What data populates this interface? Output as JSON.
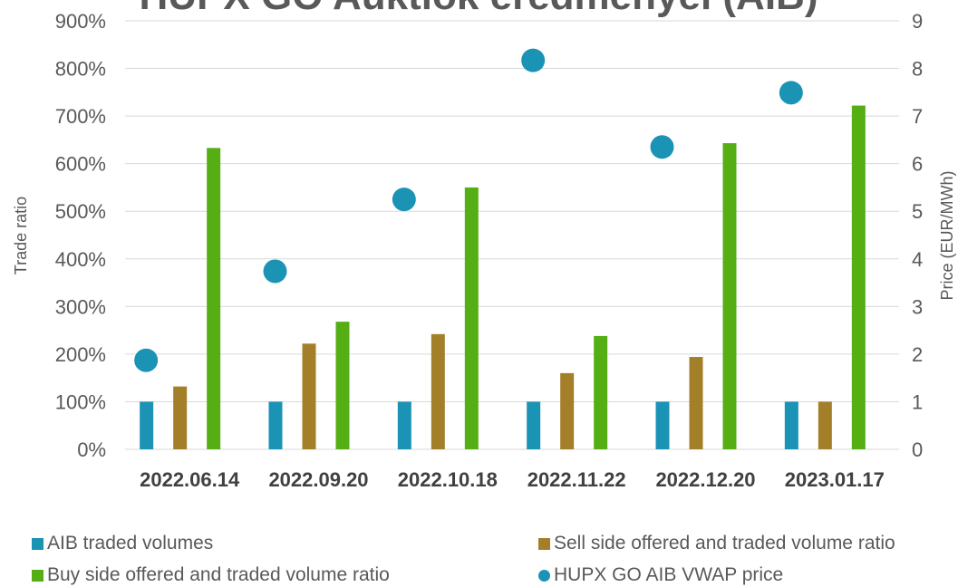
{
  "chart_data": {
    "type": "bar",
    "title": "HUPX GO Auktiók eredményei (AIB)",
    "categories": [
      "2022.06.14",
      "2022.09.20",
      "2022.10.18",
      "2022.11.22",
      "2022.12.20",
      "2023.01.17"
    ],
    "ylabel": "Trade ratio",
    "y2label": "Price (EUR/MWh)",
    "ylim": [
      0,
      900
    ],
    "y2lim": [
      0,
      9
    ],
    "yticks": [
      "0%",
      "100%",
      "200%",
      "300%",
      "400%",
      "500%",
      "600%",
      "700%",
      "800%",
      "900%"
    ],
    "y2ticks": [
      "0",
      "1",
      "2",
      "3",
      "4",
      "5",
      "6",
      "7",
      "8",
      "9"
    ],
    "grid": true,
    "legend_position": "bottom",
    "series": [
      {
        "name": "AIB traded volumes",
        "type": "bar",
        "axis": "left",
        "color": "#1b93b5",
        "values": [
          100,
          100,
          100,
          100,
          100,
          100
        ]
      },
      {
        "name": "Sell side offered and traded volume ratio",
        "type": "bar",
        "axis": "left",
        "color": "#a47f2a",
        "values": [
          132,
          222,
          242,
          160,
          194,
          100
        ]
      },
      {
        "name": "Buy side offered and traded volume ratio",
        "type": "bar",
        "axis": "left",
        "color": "#55ae14",
        "values": [
          633,
          268,
          550,
          238,
          643,
          722
        ]
      },
      {
        "name": "HUPX GO AIB VWAP price",
        "type": "scatter",
        "axis": "right",
        "color": "#1b93b5",
        "values": [
          1.87,
          3.74,
          5.25,
          8.17,
          6.35,
          7.49
        ]
      }
    ]
  },
  "legend": {
    "items": [
      {
        "label": "AIB traded volumes",
        "color": "#1b93b5",
        "shape": "square"
      },
      {
        "label": "Sell side offered and traded volume ratio",
        "color": "#a47f2a",
        "shape": "square"
      },
      {
        "label": "Buy side offered and traded volume ratio",
        "color": "#55ae14",
        "shape": "square"
      },
      {
        "label": "HUPX GO AIB VWAP price",
        "color": "#1b93b5",
        "shape": "circle"
      }
    ]
  }
}
